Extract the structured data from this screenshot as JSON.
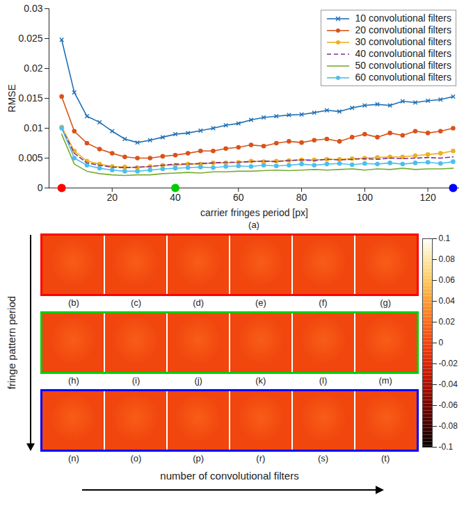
{
  "chart_data": [
    {
      "type": "line",
      "x_label": "carrier fringes period [px]",
      "y_label": "RMSE",
      "caption": "(a)",
      "x": [
        4,
        8,
        12,
        16,
        20,
        24,
        28,
        32,
        36,
        40,
        44,
        48,
        52,
        56,
        60,
        64,
        68,
        72,
        76,
        80,
        84,
        88,
        92,
        96,
        100,
        104,
        108,
        112,
        116,
        120,
        124,
        128
      ],
      "xlim": [
        0,
        130
      ],
      "xticks": [
        20,
        40,
        60,
        80,
        100,
        120
      ],
      "ylim": [
        0,
        0.03
      ],
      "yticks": [
        0,
        0.005,
        0.01,
        0.015,
        0.02,
        0.025,
        0.03
      ],
      "legend": "top-right",
      "series": [
        {
          "name": "10 convolutional filters",
          "color": "#1f6fb4",
          "marker": "x",
          "line_style": "solid",
          "values": [
            0.0248,
            0.016,
            0.012,
            0.011,
            0.0095,
            0.0082,
            0.0076,
            0.008,
            0.0085,
            0.009,
            0.0092,
            0.0096,
            0.01,
            0.0105,
            0.0108,
            0.0114,
            0.0118,
            0.012,
            0.0122,
            0.0123,
            0.0126,
            0.013,
            0.0128,
            0.0134,
            0.0138,
            0.014,
            0.0138,
            0.0145,
            0.0143,
            0.0146,
            0.0148,
            0.0153
          ]
        },
        {
          "name": "20 convolutional filters",
          "color": "#d95319",
          "marker": "circle",
          "line_style": "solid",
          "values": [
            0.0153,
            0.0095,
            0.0075,
            0.0065,
            0.0058,
            0.0052,
            0.005,
            0.005,
            0.0053,
            0.0055,
            0.0058,
            0.0062,
            0.0062,
            0.0066,
            0.0068,
            0.0072,
            0.007,
            0.0075,
            0.0078,
            0.0076,
            0.008,
            0.0082,
            0.0078,
            0.0085,
            0.009,
            0.0085,
            0.0092,
            0.0088,
            0.0095,
            0.0092,
            0.0095,
            0.01
          ]
        },
        {
          "name": "30 convolutional filters",
          "color": "#edb120",
          "marker": "circle",
          "line_style": "solid",
          "values": [
            0.0102,
            0.0062,
            0.0045,
            0.004,
            0.0036,
            0.0035,
            0.0034,
            0.0036,
            0.0038,
            0.0038,
            0.004,
            0.004,
            0.0042,
            0.0042,
            0.0043,
            0.0045,
            0.0044,
            0.0045,
            0.0046,
            0.0047,
            0.0047,
            0.0048,
            0.0048,
            0.0049,
            0.005,
            0.0051,
            0.0052,
            0.0052,
            0.0054,
            0.0056,
            0.0058,
            0.0062
          ]
        },
        {
          "name": "40 convolutional filters",
          "color": "#7e2f8e",
          "marker": "none",
          "line_style": "dashed",
          "values": [
            0.01,
            0.0058,
            0.0042,
            0.0038,
            0.0035,
            0.0034,
            0.0035,
            0.0036,
            0.0038,
            0.004,
            0.004,
            0.0041,
            0.0042,
            0.0043,
            0.0043,
            0.0044,
            0.0045,
            0.0044,
            0.0046,
            0.0047,
            0.0046,
            0.0048,
            0.0047,
            0.0048,
            0.0049,
            0.0048,
            0.005,
            0.0049,
            0.005,
            0.0051,
            0.005,
            0.0052
          ]
        },
        {
          "name": "50 convolutional filters",
          "color": "#77ac30",
          "marker": "none",
          "line_style": "solid",
          "values": [
            0.009,
            0.004,
            0.0028,
            0.0024,
            0.0022,
            0.0021,
            0.0022,
            0.0022,
            0.0024,
            0.0025,
            0.0026,
            0.0025,
            0.0027,
            0.0027,
            0.0028,
            0.0028,
            0.0029,
            0.003,
            0.0029,
            0.003,
            0.0031,
            0.003,
            0.0031,
            0.0032,
            0.003,
            0.0032,
            0.0031,
            0.0033,
            0.0031,
            0.0032,
            0.0032,
            0.0033
          ]
        },
        {
          "name": "60 convolutional filters",
          "color": "#4dbeee",
          "marker": "circle",
          "line_style": "solid",
          "values": [
            0.01,
            0.005,
            0.0038,
            0.0033,
            0.003,
            0.0028,
            0.0028,
            0.003,
            0.0032,
            0.0033,
            0.0034,
            0.0035,
            0.0034,
            0.0036,
            0.0037,
            0.0036,
            0.0038,
            0.0037,
            0.0038,
            0.004,
            0.0038,
            0.004,
            0.0041,
            0.0039,
            0.0041,
            0.004,
            0.0042,
            0.004,
            0.0042,
            0.0043,
            0.0041,
            0.0044
          ]
        }
      ],
      "highlighted_periods": [
        {
          "period": 4,
          "color": "#ff0000"
        },
        {
          "period": 40,
          "color": "#00cc00"
        },
        {
          "period": 128,
          "color": "#0000ff"
        }
      ]
    },
    {
      "type": "image_grid",
      "x_label": "number of convolutional filters",
      "y_label": "fringe pattern period",
      "rows": [
        {
          "color": "#ff0000",
          "panels": [
            "(b)",
            "(c)",
            "(d)",
            "(e)",
            "(f)",
            "(g)"
          ]
        },
        {
          "color": "#00cc00",
          "panels": [
            "(h)",
            "(i)",
            "(j)",
            "(k)",
            "(l)",
            "(m)"
          ]
        },
        {
          "color": "#0000ff",
          "panels": [
            "(n)",
            "(o)",
            "(p)",
            "(r)",
            "(s)",
            "(t)"
          ]
        }
      ],
      "colorbar": {
        "range": [
          -0.1,
          0.1
        ],
        "ticks": [
          -0.1,
          -0.08,
          -0.06,
          -0.04,
          -0.02,
          0,
          0.02,
          0.04,
          0.06,
          0.08,
          0.1
        ]
      }
    }
  ]
}
